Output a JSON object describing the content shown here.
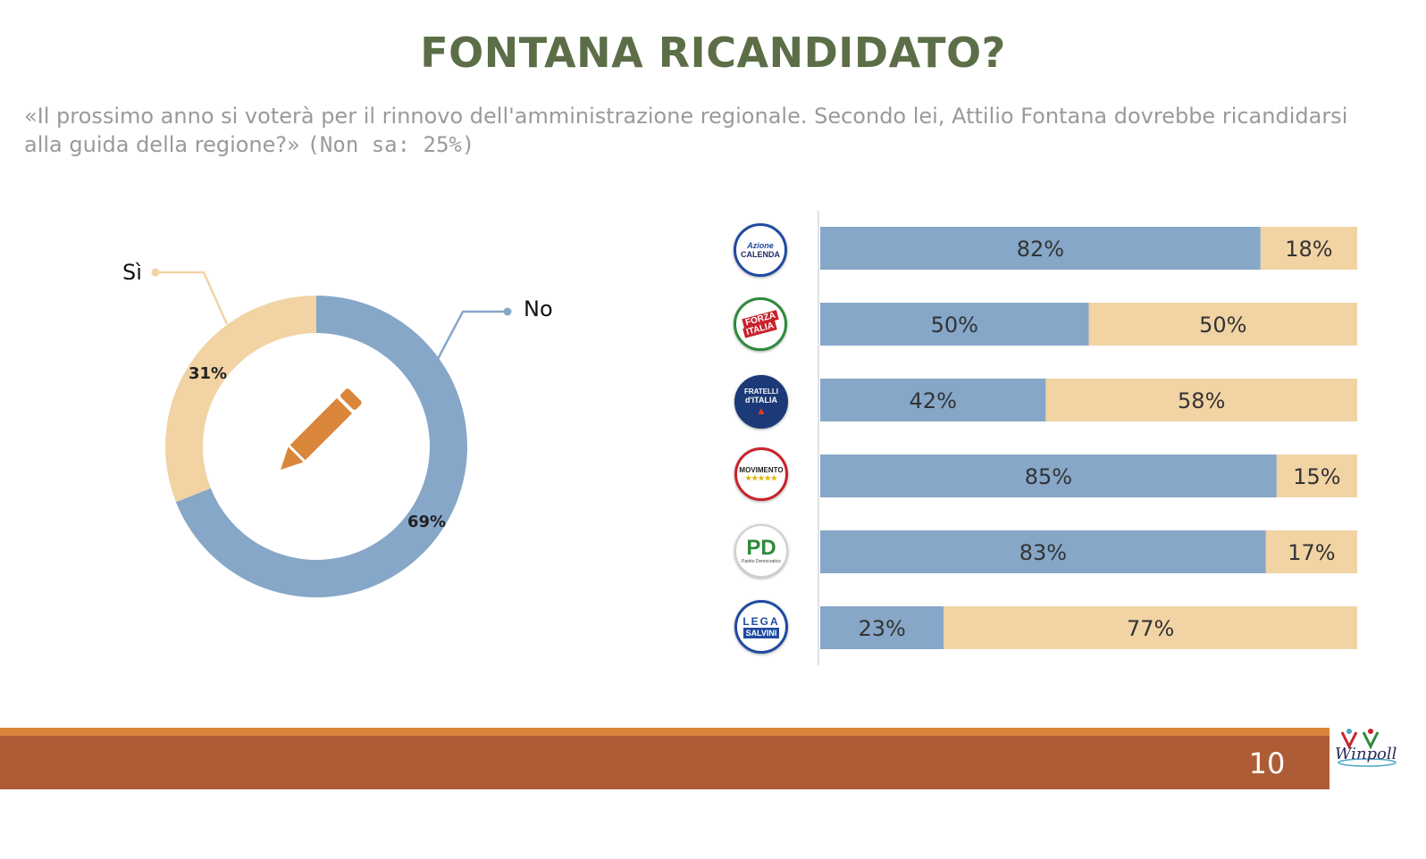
{
  "title": "FONTANA RICANDIDATO?",
  "subtitle": {
    "question": "«Il prossimo anno si voterà per il rinnovo dell'amministrazione regionale. Secondo lei, Attilio Fontana dovrebbe ricandidarsi alla guida della regione?»",
    "note": "(Non sa: 25%)"
  },
  "colors": {
    "no": "#86a7c8",
    "si": "#f1d3a4",
    "pencil": "#d9853a",
    "title": "#5c6e47"
  },
  "icons": {
    "center": "pencil-icon"
  },
  "chart_data": [
    {
      "type": "pie",
      "style": "donut",
      "categories": [
        "No",
        "Sì"
      ],
      "values": [
        69,
        31
      ],
      "value_labels": [
        "69%",
        "31%"
      ]
    },
    {
      "type": "bar",
      "orientation": "horizontal",
      "stacked": true,
      "percent": true,
      "categories": [
        "Azione Calenda",
        "Forza Italia",
        "Fratelli d'Italia",
        "Movimento 5 Stelle",
        "Partito Democratico",
        "Lega Salvini Premier"
      ],
      "series": [
        {
          "values": [
            82,
            50,
            42,
            85,
            83,
            23
          ],
          "labels": [
            "82%",
            "50%",
            "42%",
            "85%",
            "83%",
            "23%"
          ]
        },
        {
          "values": [
            18,
            50,
            58,
            15,
            17,
            77
          ],
          "labels": [
            "18%",
            "50%",
            "58%",
            "15%",
            "17%",
            "77%"
          ]
        }
      ]
    }
  ],
  "logos": [
    {
      "name": "Azione Calenda",
      "text": "Azione",
      "text2": "CALENDA"
    },
    {
      "name": "Forza Italia",
      "text": "FORZA",
      "text2": "ITALIA"
    },
    {
      "name": "Fratelli d'Italia",
      "text": "FRATELLI",
      "text2": "d'ITALIA"
    },
    {
      "name": "Movimento 5 Stelle",
      "text": "MOVIMENTO",
      "text2": "★★★★★"
    },
    {
      "name": "Partito Democratico",
      "text": "PD",
      "text2": "Partito Democratico"
    },
    {
      "name": "Lega Salvini Premier",
      "text": "LEGA",
      "text2": "SALVINI"
    }
  ],
  "footer": {
    "page_number": "10",
    "brand": "Winpoll"
  }
}
